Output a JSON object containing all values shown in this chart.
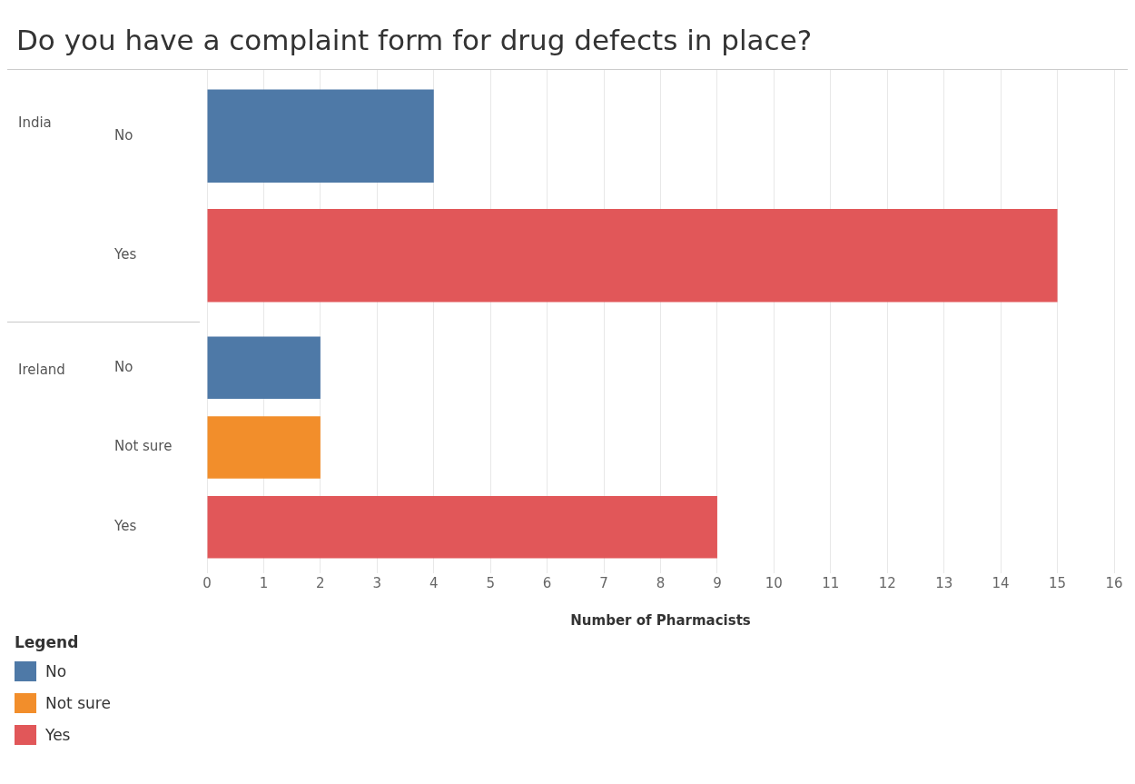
{
  "chart_data": {
    "type": "bar",
    "orientation": "horizontal",
    "title": "Do you have a complaint form for drug defects in place?",
    "xlabel": "Number of Pharmacists",
    "legend_title": "Legend",
    "categories": [
      "India",
      "Ireland"
    ],
    "series": [
      {
        "name": "No",
        "color": "#4e79a7",
        "values": [
          4,
          2
        ]
      },
      {
        "name": "Not sure",
        "color": "#f28e2b",
        "values": [
          null,
          2
        ]
      },
      {
        "name": "Yes",
        "color": "#e15759",
        "values": [
          15,
          9
        ]
      }
    ],
    "xlim": [
      0,
      16
    ],
    "xticks": [
      0,
      1,
      2,
      3,
      4,
      5,
      6,
      7,
      8,
      9,
      10,
      11,
      12,
      13,
      14,
      15,
      16
    ],
    "grid": "x",
    "legend": "bottom left"
  }
}
